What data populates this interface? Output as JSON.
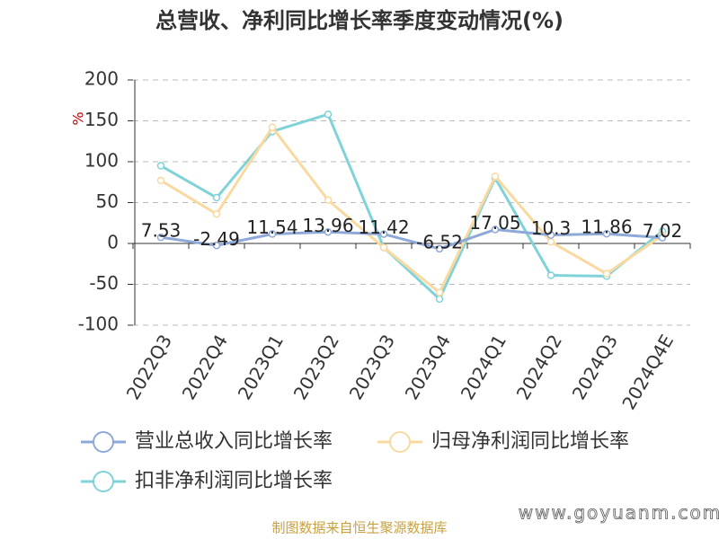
{
  "chart_data": {
    "type": "line",
    "title": "总营收、净利同比增长率季度变动情况(%)",
    "y_label": "%",
    "categories": [
      "2022Q3",
      "2022Q4",
      "2023Q1",
      "2023Q2",
      "2023Q3",
      "2023Q4",
      "2024Q1",
      "2024Q2",
      "2024Q3",
      "2024Q4E"
    ],
    "series": [
      {
        "name": "营业总收入同比增长率",
        "color": "#8ea8d8",
        "values": [
          7.53,
          -2.49,
          11.54,
          13.96,
          11.42,
          -6.52,
          17.05,
          10.3,
          11.86,
          7.02
        ]
      },
      {
        "name": "归母净利润同比增长率",
        "color": "#fad9a0",
        "values": [
          77,
          36,
          142,
          53,
          -5,
          -60,
          82,
          2,
          -37,
          10
        ]
      },
      {
        "name": "扣非净利润同比增长率",
        "color": "#7fd3d8",
        "values": [
          95,
          56,
          137,
          158,
          -5,
          -68,
          80,
          -39,
          -40,
          15
        ]
      }
    ],
    "ylim": [
      -100,
      200
    ],
    "yticks": [
      -100,
      -50,
      0,
      50,
      100,
      150,
      200
    ],
    "grid": true,
    "source": "制图数据来自恒生聚源数据库",
    "watermark": "www.goyuanm.com"
  }
}
